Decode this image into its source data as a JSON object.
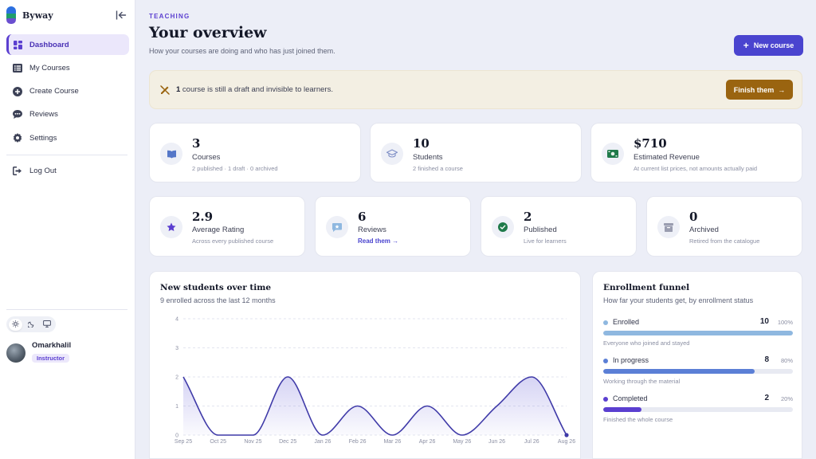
{
  "brand": {
    "name": "Byway"
  },
  "sidebar": {
    "items": [
      {
        "label": "Dashboard",
        "icon": "dashboard-icon",
        "active": true
      },
      {
        "label": "My Courses",
        "icon": "list-icon"
      },
      {
        "label": "Create Course",
        "icon": "plus-circle-icon"
      },
      {
        "label": "Reviews",
        "icon": "chat-icon"
      },
      {
        "label": "Settings",
        "icon": "gear-icon"
      }
    ],
    "logout": "Log Out",
    "theme_options": [
      "light",
      "dark",
      "system"
    ],
    "user": {
      "name": "Omarkhalil",
      "role": "Instructor"
    }
  },
  "header": {
    "eyebrow": "TEACHING",
    "title": "Your overview",
    "subtitle": "How your courses are doing and who has just joined them.",
    "new_course": "New course"
  },
  "banner": {
    "count": "1",
    "text": " course is still a draft and invisible to learners.",
    "button": "Finish them"
  },
  "stats_top": [
    {
      "value": "3",
      "label": "Courses",
      "sub": "2 published · 1 draft · 0 archived",
      "icon": "book-icon"
    },
    {
      "value": "10",
      "label": "Students",
      "sub": "2 finished a course",
      "icon": "graduation-cap-icon"
    },
    {
      "value": "$710",
      "label": "Estimated Revenue",
      "sub": "At current list prices, not amounts actually paid",
      "icon": "money-icon"
    }
  ],
  "stats_bottom": [
    {
      "value": "2.9",
      "label": "Average Rating",
      "sub": "Across every published course",
      "icon": "star-icon"
    },
    {
      "value": "6",
      "label": "Reviews",
      "link": "Read them →",
      "icon": "review-icon"
    },
    {
      "value": "2",
      "label": "Published",
      "sub": "Live for learners",
      "icon": "check-circle-icon"
    },
    {
      "value": "0",
      "label": "Archived",
      "sub": "Retired from the catalogue",
      "icon": "archive-icon"
    }
  ],
  "colors": {
    "accent": "#4a44cf",
    "warning": "#9a6410",
    "enrolled": "#8fb8e0",
    "in_progress": "#5b7fd6",
    "completed": "#5b3fd0"
  },
  "chart": {
    "title": "New students over time",
    "subtitle": "9 enrolled across the last 12 months"
  },
  "chart_data": {
    "type": "area",
    "categories": [
      "Sep 25",
      "Oct 25",
      "Nov 25",
      "Dec 25",
      "Jan 26",
      "Feb 26",
      "Mar 26",
      "Apr 26",
      "May 26",
      "Jun 26",
      "Jul 26",
      "Aug 26"
    ],
    "values": [
      2,
      0,
      0,
      2,
      0,
      1,
      0,
      1,
      0,
      1,
      2,
      0
    ],
    "y_ticks": [
      0,
      1,
      2,
      3,
      4
    ],
    "ylim": [
      0,
      4
    ],
    "grid": true
  },
  "funnel": {
    "title": "Enrollment funnel",
    "subtitle": "How far your students get, by enrollment status",
    "steps": [
      {
        "name": "Enrolled",
        "count": "10",
        "pct": "100%",
        "fraction": 1.0,
        "desc": "Everyone who joined and stayed",
        "color": "#8fb8e0"
      },
      {
        "name": "In progress",
        "count": "8",
        "pct": "80%",
        "fraction": 0.8,
        "desc": "Working through the material",
        "color": "#5b7fd6"
      },
      {
        "name": "Completed",
        "count": "2",
        "pct": "20%",
        "fraction": 0.2,
        "desc": "Finished the whole course",
        "color": "#5b3fd0"
      }
    ]
  }
}
